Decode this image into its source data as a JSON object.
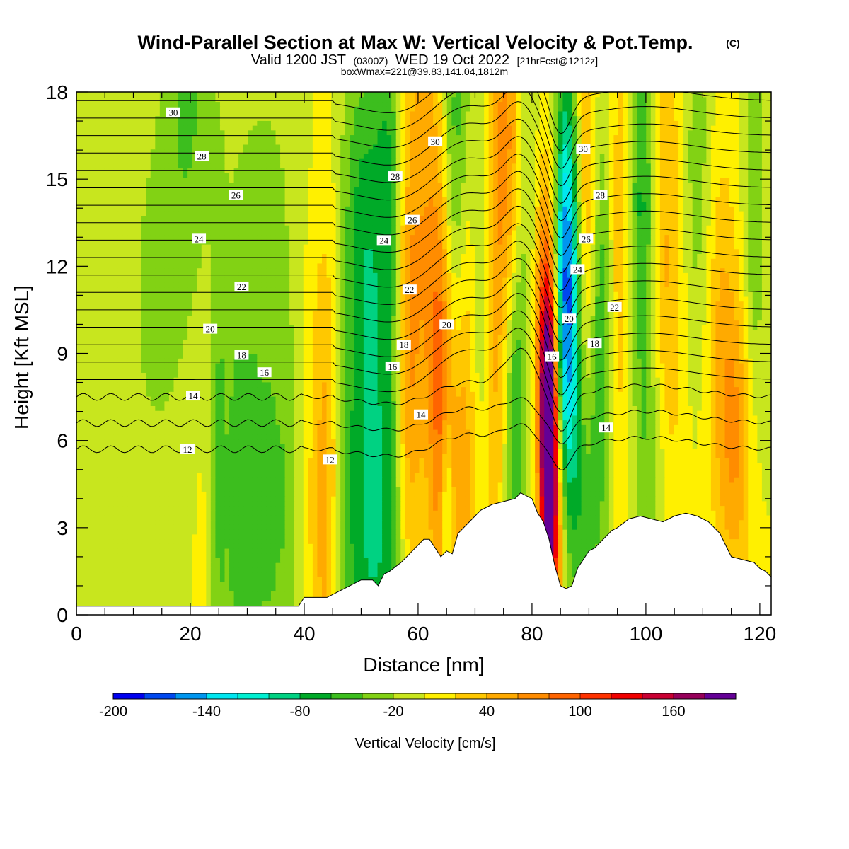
{
  "chart_data": {
    "type": "heatmap",
    "title": "Wind-Parallel Section at Max W: Vertical Velocity & Pot.Temp.",
    "title_mark": "(C)",
    "subtitle_parts": [
      "Valid 1200 JST",
      "(0300Z)",
      "WED 19 Oct 2022",
      "[21hrFcst@1212z]"
    ],
    "subtitle2": "boxWmax=221@39.83,141.04,1812m",
    "xlabel": "Distance [nm]",
    "ylabel": "Height [Kft MSL]",
    "xlim": [
      0,
      122
    ],
    "ylim": [
      0,
      18
    ],
    "xticks": [
      0,
      20,
      40,
      60,
      80,
      100,
      120
    ],
    "yticks": [
      0,
      3,
      6,
      9,
      12,
      15,
      18
    ],
    "colorbar": {
      "label": "Vertical Velocity [cm/s]",
      "min": -200,
      "max": 200,
      "step": 20,
      "tick_values": [
        -200,
        -140,
        -80,
        -20,
        40,
        100,
        160
      ],
      "colors": [
        "#0000f0",
        "#0048f0",
        "#0096f0",
        "#00e6f0",
        "#00f0d2",
        "#00d282",
        "#00aa28",
        "#3cbe1e",
        "#82d214",
        "#c8e61e",
        "#fff000",
        "#ffc800",
        "#ffaa00",
        "#ff8c00",
        "#ff6400",
        "#ff3200",
        "#f00000",
        "#c80032",
        "#96005a",
        "#640096"
      ]
    },
    "terrain_kft": [
      [
        0,
        0.3
      ],
      [
        5,
        0.3
      ],
      [
        10,
        0.3
      ],
      [
        15,
        0.3
      ],
      [
        20,
        0.3
      ],
      [
        25,
        0.3
      ],
      [
        30,
        0.3
      ],
      [
        35,
        0.3
      ],
      [
        39,
        0.3
      ],
      [
        40,
        0.6
      ],
      [
        44,
        0.6
      ],
      [
        46,
        0.8
      ],
      [
        48,
        1.0
      ],
      [
        50,
        1.2
      ],
      [
        52,
        1.2
      ],
      [
        53,
        1.0
      ],
      [
        54,
        1.4
      ],
      [
        55,
        1.5
      ],
      [
        57,
        1.8
      ],
      [
        59,
        2.2
      ],
      [
        61,
        2.6
      ],
      [
        62,
        2.6
      ],
      [
        63,
        2.3
      ],
      [
        64,
        2.0
      ],
      [
        65,
        2.2
      ],
      [
        66,
        2.1
      ],
      [
        67,
        2.8
      ],
      [
        69,
        3.2
      ],
      [
        71,
        3.6
      ],
      [
        73,
        3.8
      ],
      [
        75,
        3.9
      ],
      [
        77,
        4.0
      ],
      [
        78,
        4.2
      ],
      [
        80,
        4.0
      ],
      [
        81,
        3.5
      ],
      [
        82,
        3.2
      ],
      [
        83,
        2.6
      ],
      [
        84,
        1.7
      ],
      [
        85,
        1.0
      ],
      [
        86,
        0.9
      ],
      [
        87,
        1.0
      ],
      [
        88,
        1.6
      ],
      [
        89,
        1.9
      ],
      [
        90,
        2.2
      ],
      [
        91,
        2.3
      ],
      [
        92,
        2.5
      ],
      [
        93,
        2.7
      ],
      [
        94,
        2.9
      ],
      [
        95,
        3.0
      ],
      [
        97,
        3.3
      ],
      [
        99,
        3.4
      ],
      [
        101,
        3.3
      ],
      [
        103,
        3.2
      ],
      [
        105,
        3.4
      ],
      [
        107,
        3.5
      ],
      [
        109,
        3.4
      ],
      [
        111,
        3.2
      ],
      [
        113,
        2.8
      ],
      [
        114,
        2.4
      ],
      [
        115,
        2.0
      ],
      [
        117,
        1.9
      ],
      [
        119,
        1.8
      ],
      [
        120,
        1.6
      ],
      [
        121,
        1.5
      ],
      [
        122,
        1.3
      ]
    ],
    "w_features": [
      [
        20,
        21,
        4,
        8,
        -40
      ],
      [
        22,
        14,
        8,
        7,
        -30
      ],
      [
        14,
        10,
        7,
        8,
        -20
      ],
      [
        28,
        4,
        2,
        8,
        -50
      ],
      [
        31,
        4,
        2,
        8,
        -45
      ],
      [
        34,
        4,
        2,
        8,
        -40
      ],
      [
        37,
        4,
        2,
        8,
        -35
      ],
      [
        25,
        5,
        1.5,
        9,
        -45
      ],
      [
        44,
        4,
        3,
        10,
        55
      ],
      [
        47,
        3,
        2.5,
        8,
        -45
      ],
      [
        51,
        4,
        3,
        10,
        -70
      ],
      [
        55,
        3,
        3,
        8,
        -60
      ],
      [
        50,
        14,
        4,
        6,
        -45
      ],
      [
        55,
        15,
        2.5,
        6,
        -55
      ],
      [
        58,
        8,
        2,
        8,
        45
      ],
      [
        61,
        13,
        4,
        10,
        55
      ],
      [
        64,
        8,
        2,
        8,
        70
      ],
      [
        65,
        4,
        1,
        3,
        -60
      ],
      [
        67,
        15,
        3,
        7,
        -90
      ],
      [
        69,
        14,
        3,
        6,
        55
      ],
      [
        68,
        6,
        3,
        8,
        55
      ],
      [
        71,
        12,
        2,
        8,
        -60
      ],
      [
        73,
        9,
        2,
        10,
        45
      ],
      [
        76,
        16,
        3,
        6,
        70
      ],
      [
        77,
        6,
        1.5,
        6,
        -55
      ],
      [
        79,
        14,
        2.5,
        8,
        -45
      ],
      [
        83,
        6,
        1.5,
        5,
        240
      ],
      [
        82,
        10,
        2,
        6,
        80
      ],
      [
        84,
        2,
        2,
        4,
        60
      ],
      [
        86,
        12,
        2,
        7,
        -140
      ],
      [
        87,
        9,
        2,
        6,
        -50
      ],
      [
        90,
        15,
        2.5,
        6,
        55
      ],
      [
        92,
        11,
        2,
        8,
        -70
      ],
      [
        89,
        3,
        3,
        4,
        -40
      ],
      [
        96,
        13,
        2.5,
        8,
        45
      ],
      [
        99,
        14,
        2.5,
        7,
        -75
      ],
      [
        101,
        5,
        3,
        4,
        -35
      ],
      [
        104,
        12,
        3,
        9,
        45
      ],
      [
        109,
        15,
        3,
        7,
        -35
      ],
      [
        116,
        6,
        3,
        5,
        55
      ],
      [
        113,
        10,
        3,
        7,
        40
      ],
      [
        119,
        14,
        2,
        8,
        -40
      ],
      [
        34,
        16,
        7,
        5,
        -15
      ],
      [
        23,
        13,
        6,
        9,
        25
      ]
    ],
    "theta_contours": [
      12,
      13,
      14,
      15,
      16,
      17,
      18,
      19,
      20,
      21,
      22,
      23,
      24,
      25,
      26,
      27,
      28,
      29,
      30,
      31
    ],
    "theta_labels": [
      {
        "text": "30",
        "x": 17,
        "y": 17.3
      },
      {
        "text": "28",
        "x": 22,
        "y": 15.8
      },
      {
        "text": "26",
        "x": 28,
        "y": 14.45
      },
      {
        "text": "24",
        "x": 21.5,
        "y": 12.95
      },
      {
        "text": "22",
        "x": 29,
        "y": 11.3
      },
      {
        "text": "20",
        "x": 23.5,
        "y": 9.85
      },
      {
        "text": "18",
        "x": 29,
        "y": 8.95
      },
      {
        "text": "16",
        "x": 33,
        "y": 8.35
      },
      {
        "text": "14",
        "x": 20.5,
        "y": 7.55
      },
      {
        "text": "12",
        "x": 19.5,
        "y": 5.7
      },
      {
        "text": "12",
        "x": 44.5,
        "y": 5.35
      },
      {
        "text": "30",
        "x": 63,
        "y": 16.3
      },
      {
        "text": "28",
        "x": 56,
        "y": 15.1
      },
      {
        "text": "26",
        "x": 59,
        "y": 13.6
      },
      {
        "text": "24",
        "x": 54,
        "y": 12.9
      },
      {
        "text": "22",
        "x": 58.5,
        "y": 11.2
      },
      {
        "text": "20",
        "x": 65,
        "y": 10.0
      },
      {
        "text": "18",
        "x": 57.5,
        "y": 9.3
      },
      {
        "text": "16",
        "x": 55.5,
        "y": 8.55
      },
      {
        "text": "14",
        "x": 60.5,
        "y": 6.9
      },
      {
        "text": "30",
        "x": 89,
        "y": 16.05
      },
      {
        "text": "28",
        "x": 92,
        "y": 14.45
      },
      {
        "text": "26",
        "x": 89.5,
        "y": 12.95
      },
      {
        "text": "24",
        "x": 88,
        "y": 11.9
      },
      {
        "text": "22",
        "x": 94.5,
        "y": 10.6
      },
      {
        "text": "20",
        "x": 86.5,
        "y": 10.2
      },
      {
        "text": "18",
        "x": 91,
        "y": 9.35
      },
      {
        "text": "16",
        "x": 83.5,
        "y": 8.9
      },
      {
        "text": "14",
        "x": 93,
        "y": 6.45
      }
    ]
  }
}
